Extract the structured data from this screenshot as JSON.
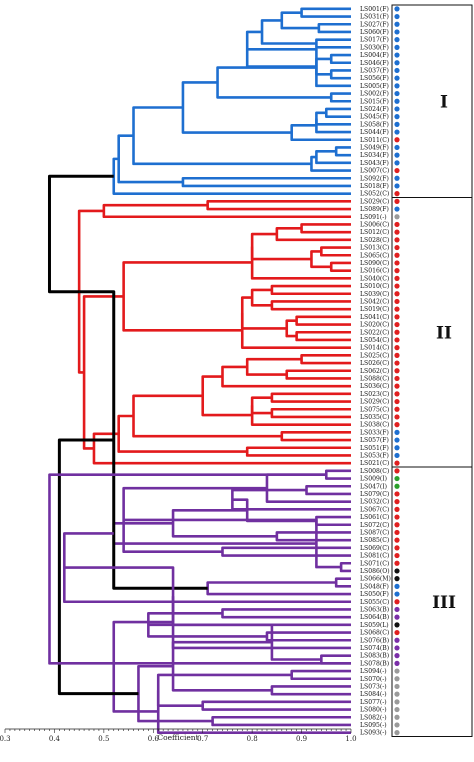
{
  "chart_data": {
    "type": "dendrogram",
    "xlabel": "Coefficient",
    "xlim": [
      0.3,
      1.0
    ],
    "xticks": [
      "0.3",
      "0.4",
      "0.5",
      "0.6",
      "0.7",
      "0.8",
      "0.9",
      "1.0"
    ],
    "leaves": [
      "LS001(F)",
      "LS031(F)",
      "LS027(F)",
      "LS060(F)",
      "LS017(F)",
      "LS030(F)",
      "LS004(F)",
      "LS046(F)",
      "LS037(F)",
      "LS056(F)",
      "LS005(F)",
      "LS002(F)",
      "LS015(F)",
      "LS024(F)",
      "LS045(F)",
      "LS058(F)",
      "LS044(F)",
      "LS011(C)",
      "LS049(F)",
      "LS034(F)",
      "LS043(F)",
      "LS007(C)",
      "LS092(F)",
      "LS018(F)",
      "LS052(C)",
      "LS029(C)",
      "LS089(F)",
      "LS091(-)",
      "LS006(C)",
      "LS012(C)",
      "LS028(C)",
      "LS013(C)",
      "LS065(C)",
      "LS090(C)",
      "LS016(C)",
      "LS040(C)",
      "LS010(C)",
      "LS039(C)",
      "LS042(C)",
      "LS019(C)",
      "LS041(C)",
      "LS020(C)",
      "LS022(C)",
      "LS054(C)",
      "LS014(C)",
      "LS025(C)",
      "LS026(C)",
      "LS062(C)",
      "LS088(C)",
      "LS036(C)",
      "LS023(C)",
      "LS029(C)",
      "LS075(C)",
      "LS035(C)",
      "LS038(C)",
      "LS033(F)",
      "LS057(F)",
      "LS051(F)",
      "LS053(F)",
      "LS021(C)",
      "LS008(C)",
      "LS009(I)",
      "LS047(I)",
      "LS079(C)",
      "LS032(C)",
      "LS067(C)",
      "LS061(C)",
      "LS072(C)",
      "LS087(C)",
      "LS085(C)",
      "LS069(C)",
      "LS081(C)",
      "LS071(C)",
      "LS086(O)",
      "LS066(M)",
      "LS048(F)",
      "LS050(F)",
      "LS055(C)",
      "LS063(B)",
      "LS064(B)",
      "LS059(L)",
      "LS068(C)",
      "LS076(B)",
      "LS074(B)",
      "LS083(B)",
      "LS078(B)",
      "LS094(-)",
      "LS070(-)",
      "LS073(-)",
      "LS084(-)",
      "LS077(-)",
      "LS080(-)",
      "LS082(-)",
      "LS095(-)",
      "LS093(-)"
    ],
    "leaf_dot_colors": [
      "#1e6fd0",
      "#1e6fd0",
      "#1e6fd0",
      "#1e6fd0",
      "#1e6fd0",
      "#1e6fd0",
      "#1e6fd0",
      "#1e6fd0",
      "#1e6fd0",
      "#1e6fd0",
      "#1e6fd0",
      "#1e6fd0",
      "#1e6fd0",
      "#1e6fd0",
      "#1e6fd0",
      "#1e6fd0",
      "#1e6fd0",
      "#e02020",
      "#1e6fd0",
      "#1e6fd0",
      "#1e6fd0",
      "#e02020",
      "#1e6fd0",
      "#1e6fd0",
      "#e02020",
      "#e02020",
      "#1e6fd0",
      "#9a9a9a",
      "#e02020",
      "#e02020",
      "#e02020",
      "#e02020",
      "#e02020",
      "#e02020",
      "#e02020",
      "#e02020",
      "#e02020",
      "#e02020",
      "#e02020",
      "#e02020",
      "#e02020",
      "#e02020",
      "#e02020",
      "#e02020",
      "#e02020",
      "#e02020",
      "#e02020",
      "#e02020",
      "#e02020",
      "#e02020",
      "#e02020",
      "#e02020",
      "#e02020",
      "#e02020",
      "#e02020",
      "#1e6fd0",
      "#1e6fd0",
      "#1e6fd0",
      "#1e6fd0",
      "#e02020",
      "#e02020",
      "#2ca02c",
      "#2ca02c",
      "#e02020",
      "#e02020",
      "#e02020",
      "#e02020",
      "#e02020",
      "#e02020",
      "#e02020",
      "#e02020",
      "#e02020",
      "#e02020",
      "#111111",
      "#111111",
      "#1e6fd0",
      "#1e6fd0",
      "#e02020",
      "#7b2fa8",
      "#7b2fa8",
      "#111111",
      "#e02020",
      "#7b2fa8",
      "#7b2fa8",
      "#7b2fa8",
      "#7b2fa8",
      "#9a9a9a",
      "#9a9a9a",
      "#9a9a9a",
      "#9a9a9a",
      "#9a9a9a",
      "#9a9a9a",
      "#9a9a9a",
      "#9a9a9a",
      "#9a9a9a"
    ],
    "clusters": [
      {
        "label": "I",
        "color": "#1e6fd0",
        "first_leaf": 0,
        "last_leaf": 24
      },
      {
        "label": "II",
        "color": "#e31a1c",
        "first_leaf": 25,
        "last_leaf": 59
      },
      {
        "label": "III",
        "color": "#7030a0",
        "first_leaf": 60,
        "last_leaf": 94
      }
    ],
    "root_color": "#000000",
    "merges": [
      [
        0,
        1,
        0.9
      ],
      [
        2,
        3,
        0.935
      ],
      [
        95,
        96,
        0.86
      ],
      [
        4,
        5,
        0.93
      ],
      [
        97,
        98,
        0.82
      ],
      [
        6,
        7,
        0.96
      ],
      [
        8,
        9,
        0.96
      ],
      [
        100,
        101,
        0.93
      ],
      [
        99,
        102,
        0.79
      ],
      [
        103,
        10,
        0.93
      ],
      [
        11,
        12,
        0.96
      ],
      [
        104,
        105,
        0.73
      ],
      [
        13,
        14,
        0.95
      ],
      [
        107,
        15,
        0.93
      ],
      [
        108,
        16,
        0.93
      ],
      [
        109,
        17,
        0.88
      ],
      [
        106,
        110,
        0.66
      ],
      [
        18,
        19,
        0.97
      ],
      [
        112,
        20,
        0.93
      ],
      [
        113,
        21,
        0.92
      ],
      [
        111,
        114,
        0.56
      ],
      [
        22,
        23,
        0.66
      ],
      [
        115,
        116,
        0.53
      ],
      [
        117,
        24,
        0.52
      ],
      [
        25,
        26,
        0.71
      ],
      [
        119,
        27,
        0.5
      ],
      [
        28,
        29,
        0.9
      ],
      [
        121,
        30,
        0.85
      ],
      [
        31,
        32,
        0.94
      ],
      [
        33,
        34,
        0.96
      ],
      [
        123,
        124,
        0.92
      ],
      [
        122,
        125,
        0.8
      ],
      [
        126,
        35,
        0.8
      ],
      [
        36,
        37,
        0.84
      ],
      [
        38,
        39,
        0.84
      ],
      [
        128,
        129,
        0.8
      ],
      [
        40,
        41,
        0.89
      ],
      [
        42,
        43,
        0.89
      ],
      [
        131,
        132,
        0.87
      ],
      [
        130,
        133,
        0.78
      ],
      [
        134,
        44,
        0.78
      ],
      [
        127,
        135,
        0.54
      ],
      [
        45,
        46,
        0.9
      ],
      [
        47,
        48,
        0.87
      ],
      [
        137,
        138,
        0.79
      ],
      [
        139,
        49,
        0.74
      ],
      [
        50,
        51,
        0.84
      ],
      [
        52,
        53,
        0.84
      ],
      [
        141,
        142,
        0.8
      ],
      [
        143,
        54,
        0.8
      ],
      [
        140,
        144,
        0.7
      ],
      [
        55,
        56,
        0.86
      ],
      [
        145,
        146,
        0.56
      ],
      [
        57,
        58,
        0.79
      ],
      [
        147,
        148,
        0.53
      ],
      [
        149,
        59,
        0.48
      ],
      [
        136,
        150,
        0.46
      ],
      [
        120,
        151,
        0.45
      ],
      [
        60,
        61,
        0.95
      ],
      [
        62,
        63,
        0.91
      ],
      [
        153,
        64,
        0.83
      ],
      [
        154,
        65,
        0.76
      ],
      [
        66,
        67,
        0.93
      ],
      [
        68,
        69,
        0.85
      ],
      [
        156,
        157,
        0.79
      ],
      [
        70,
        71,
        0.74
      ],
      [
        158,
        159,
        0.64
      ],
      [
        155,
        160,
        0.54
      ],
      [
        72,
        73,
        0.98
      ],
      [
        74,
        75,
        0.97
      ],
      [
        162,
        163,
        0.93
      ],
      [
        164,
        76,
        0.71
      ],
      [
        161,
        165,
        0.52
      ],
      [
        152,
        166,
        0.52
      ],
      [
        167,
        77,
        0.42
      ],
      [
        78,
        79,
        0.74
      ],
      [
        169,
        80,
        0.64
      ],
      [
        81,
        82,
        0.83
      ],
      [
        171,
        83,
        0.64
      ],
      [
        170,
        172,
        0.59
      ],
      [
        84,
        85,
        0.94
      ],
      [
        86,
        87,
        0.88
      ],
      [
        174,
        175,
        0.84
      ],
      [
        88,
        89,
        0.84
      ],
      [
        90,
        91,
        0.7
      ],
      [
        177,
        178,
        0.64
      ],
      [
        176,
        179,
        0.61
      ],
      [
        92,
        93,
        0.72
      ],
      [
        181,
        94,
        0.61
      ],
      [
        180,
        182,
        0.57
      ],
      [
        173,
        183,
        0.52
      ],
      [
        168,
        184,
        0.41
      ],
      [
        153,
        85,
        0.39
      ],
      [
        118,
        152,
        0.39
      ]
    ]
  }
}
